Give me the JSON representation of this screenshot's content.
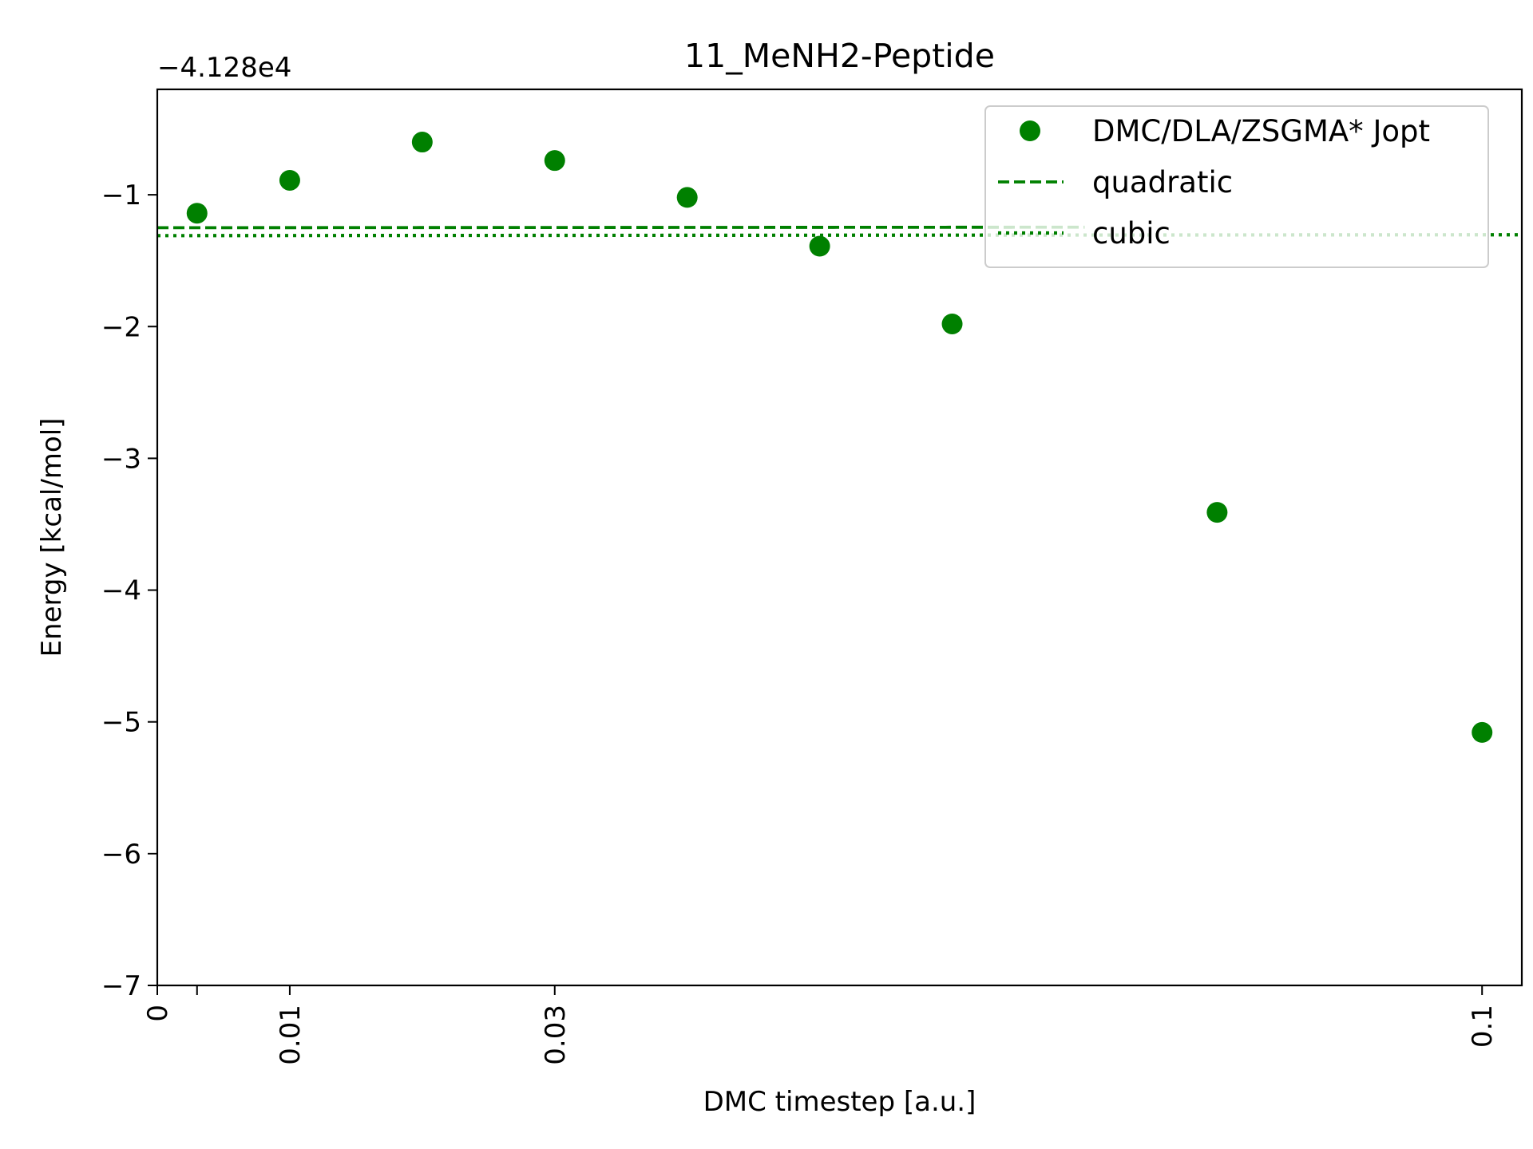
{
  "chart_data": {
    "type": "scatter",
    "title": "11_MeNH2-Peptide",
    "xlabel": "DMC timestep [a.u.]",
    "ylabel": "Energy [kcal/mol]",
    "y_offset_label": "−4.128e4",
    "xlim": [
      0,
      0.103
    ],
    "ylim": [
      -7,
      -0.2
    ],
    "x_ticks": [
      0,
      0.003,
      0.01,
      0.03,
      0.1
    ],
    "x_tick_labels": [
      "0",
      "",
      "0.01",
      "0.03",
      "0.1"
    ],
    "y_ticks": [
      -7,
      -6,
      -5,
      -4,
      -3,
      -2,
      -1
    ],
    "y_tick_labels": [
      "−7",
      "−6",
      "−5",
      "−4",
      "−3",
      "−2",
      "−1"
    ],
    "grid": false,
    "legend_position": "top-right",
    "color": "#008000",
    "series": [
      {
        "name": "DMC/DLA/ZSGMA* Jopt",
        "kind": "points",
        "x": [
          0.003,
          0.01,
          0.02,
          0.03,
          0.04,
          0.05,
          0.06,
          0.08,
          0.1
        ],
        "y": [
          -1.14,
          -0.89,
          -0.6,
          -0.74,
          -1.02,
          -1.39,
          -1.98,
          -3.41,
          -5.08
        ]
      },
      {
        "name": "quadratic",
        "kind": "dashed-line",
        "coefficients": [
          -1.25,
          0.058,
          -0.000972
        ],
        "x_range": [
          0,
          0.07
        ]
      },
      {
        "name": "cubic",
        "kind": "dotted-line",
        "coefficients": [
          -1.31,
          0.0636,
          -0.00178,
          9.49e-06
        ],
        "x_range": [
          0,
          0.103
        ]
      }
    ]
  }
}
